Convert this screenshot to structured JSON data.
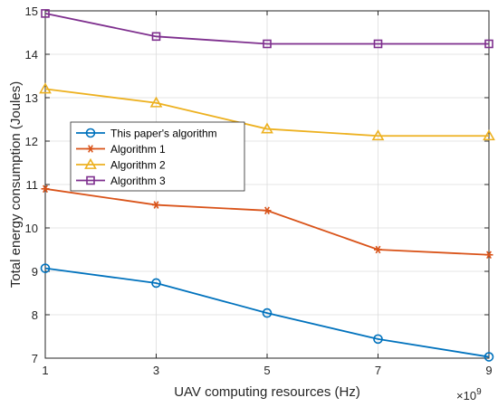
{
  "chart_data": {
    "type": "line",
    "xlabel": "UAV computing resources (Hz)",
    "ylabel": "Total energy consumption (Joules)",
    "x_exponent_label": "×10",
    "x_exponent_power": "9",
    "x": [
      1,
      3,
      5,
      7,
      9
    ],
    "x_ticks": [
      "1",
      "3",
      "5",
      "7",
      "9"
    ],
    "y_ticks": [
      "7",
      "8",
      "9",
      "10",
      "11",
      "12",
      "13",
      "14",
      "15"
    ],
    "xlim": [
      1,
      9
    ],
    "ylim": [
      7,
      15
    ],
    "grid": true,
    "legend_placement": "center-left",
    "series": [
      {
        "name": "This paper's algorithm",
        "color": "#0072BD",
        "marker": "circle",
        "values": [
          9.07,
          8.73,
          8.04,
          7.44,
          7.03
        ]
      },
      {
        "name": "Algorithm 1",
        "color": "#D95319",
        "marker": "asterisk",
        "values": [
          10.9,
          10.53,
          10.4,
          9.5,
          9.38
        ]
      },
      {
        "name": "Algorithm 2",
        "color": "#EDB120",
        "marker": "triangle",
        "values": [
          13.2,
          12.88,
          12.28,
          12.12,
          12.12
        ]
      },
      {
        "name": "Algorithm 3",
        "color": "#7E2F8E",
        "marker": "square",
        "values": [
          14.94,
          14.41,
          14.24,
          14.24,
          14.24
        ]
      }
    ]
  }
}
